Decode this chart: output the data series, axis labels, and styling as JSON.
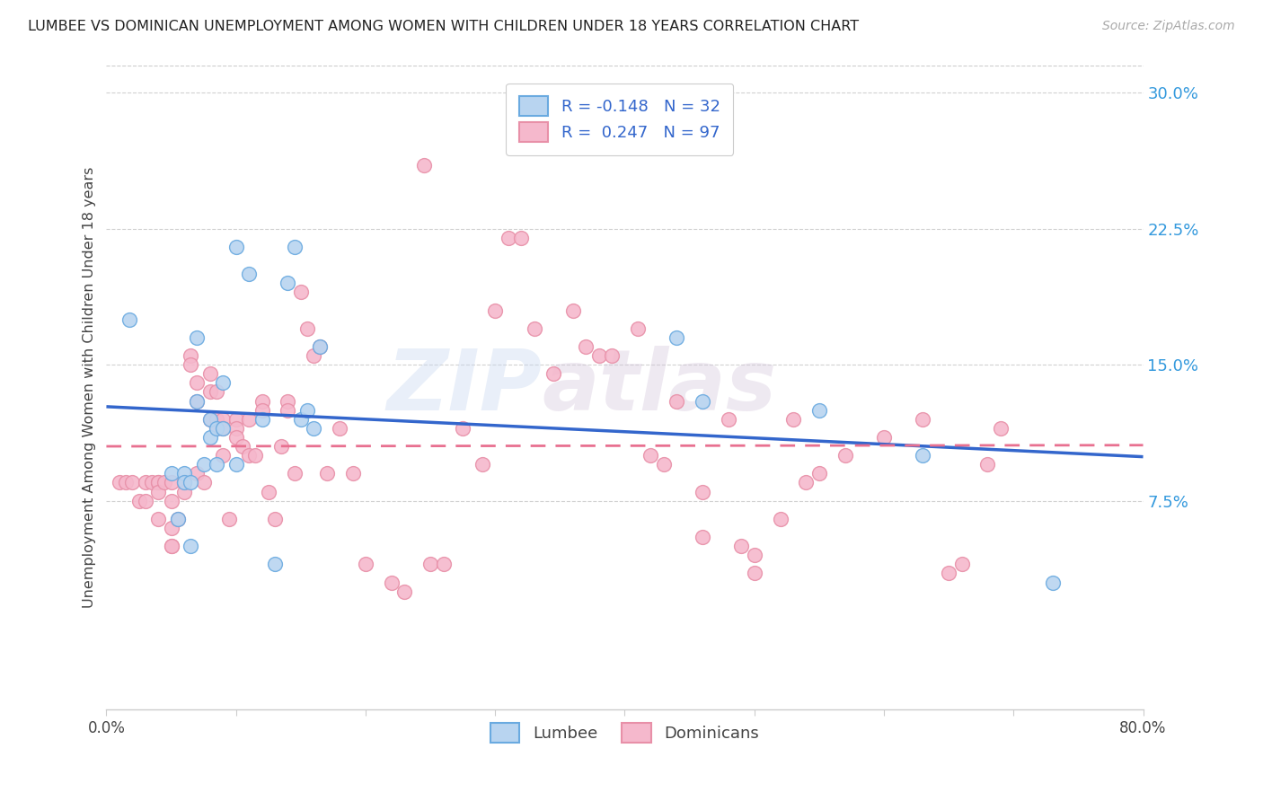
{
  "title": "LUMBEE VS DOMINICAN UNEMPLOYMENT AMONG WOMEN WITH CHILDREN UNDER 18 YEARS CORRELATION CHART",
  "source": "Source: ZipAtlas.com",
  "ylabel": "Unemployment Among Women with Children Under 18 years",
  "xlim": [
    0.0,
    0.8
  ],
  "ylim": [
    -0.04,
    0.315
  ],
  "yticks": [
    0.075,
    0.15,
    0.225,
    0.3
  ],
  "ytick_labels": [
    "7.5%",
    "15.0%",
    "22.5%",
    "30.0%"
  ],
  "xticks": [
    0.0,
    0.1,
    0.2,
    0.3,
    0.4,
    0.5,
    0.6,
    0.7,
    0.8
  ],
  "xtick_labels": [
    "0.0%",
    "",
    "",
    "",
    "",
    "",
    "",
    "",
    "80.0%"
  ],
  "lumbee_fill_color": "#b8d4f0",
  "lumbee_edge_color": "#6aaae0",
  "dominican_fill_color": "#f5b8cc",
  "dominican_edge_color": "#e890a8",
  "lumbee_line_color": "#3366cc",
  "dominican_line_color": "#e87090",
  "lumbee_R": -0.148,
  "lumbee_N": 32,
  "dominican_R": 0.247,
  "dominican_N": 97,
  "watermark_zip": "ZIP",
  "watermark_atlas": "atlas",
  "background_color": "#ffffff",
  "lumbee_x": [
    0.018,
    0.05,
    0.055,
    0.06,
    0.06,
    0.065,
    0.065,
    0.07,
    0.07,
    0.075,
    0.08,
    0.08,
    0.085,
    0.085,
    0.09,
    0.09,
    0.1,
    0.1,
    0.11,
    0.12,
    0.13,
    0.14,
    0.145,
    0.15,
    0.155,
    0.16,
    0.165,
    0.44,
    0.46,
    0.55,
    0.63,
    0.73
  ],
  "lumbee_y": [
    0.175,
    0.09,
    0.065,
    0.09,
    0.085,
    0.085,
    0.05,
    0.165,
    0.13,
    0.095,
    0.12,
    0.11,
    0.115,
    0.095,
    0.115,
    0.14,
    0.215,
    0.095,
    0.2,
    0.12,
    0.04,
    0.195,
    0.215,
    0.12,
    0.125,
    0.115,
    0.16,
    0.165,
    0.13,
    0.125,
    0.1,
    0.03
  ],
  "dominican_x": [
    0.01,
    0.015,
    0.02,
    0.025,
    0.03,
    0.03,
    0.035,
    0.04,
    0.04,
    0.04,
    0.04,
    0.045,
    0.05,
    0.05,
    0.05,
    0.05,
    0.05,
    0.055,
    0.06,
    0.06,
    0.06,
    0.065,
    0.065,
    0.07,
    0.07,
    0.07,
    0.075,
    0.08,
    0.08,
    0.08,
    0.085,
    0.085,
    0.085,
    0.09,
    0.09,
    0.09,
    0.095,
    0.1,
    0.1,
    0.1,
    0.105,
    0.11,
    0.11,
    0.115,
    0.12,
    0.12,
    0.125,
    0.13,
    0.135,
    0.14,
    0.14,
    0.145,
    0.15,
    0.155,
    0.16,
    0.165,
    0.17,
    0.18,
    0.19,
    0.2,
    0.22,
    0.23,
    0.245,
    0.25,
    0.26,
    0.275,
    0.29,
    0.3,
    0.31,
    0.32,
    0.33,
    0.345,
    0.36,
    0.37,
    0.38,
    0.39,
    0.41,
    0.42,
    0.43,
    0.44,
    0.46,
    0.46,
    0.48,
    0.49,
    0.5,
    0.5,
    0.52,
    0.53,
    0.54,
    0.55,
    0.57,
    0.6,
    0.63,
    0.65,
    0.66,
    0.68,
    0.69
  ],
  "dominican_y": [
    0.085,
    0.085,
    0.085,
    0.075,
    0.085,
    0.075,
    0.085,
    0.085,
    0.085,
    0.08,
    0.065,
    0.085,
    0.085,
    0.075,
    0.06,
    0.05,
    0.05,
    0.065,
    0.085,
    0.085,
    0.08,
    0.155,
    0.15,
    0.14,
    0.13,
    0.09,
    0.085,
    0.145,
    0.135,
    0.12,
    0.135,
    0.12,
    0.115,
    0.12,
    0.115,
    0.1,
    0.065,
    0.12,
    0.115,
    0.11,
    0.105,
    0.12,
    0.1,
    0.1,
    0.13,
    0.125,
    0.08,
    0.065,
    0.105,
    0.13,
    0.125,
    0.09,
    0.19,
    0.17,
    0.155,
    0.16,
    0.09,
    0.115,
    0.09,
    0.04,
    0.03,
    0.025,
    0.26,
    0.04,
    0.04,
    0.115,
    0.095,
    0.18,
    0.22,
    0.22,
    0.17,
    0.145,
    0.18,
    0.16,
    0.155,
    0.155,
    0.17,
    0.1,
    0.095,
    0.13,
    0.055,
    0.08,
    0.12,
    0.05,
    0.045,
    0.035,
    0.065,
    0.12,
    0.085,
    0.09,
    0.1,
    0.11,
    0.12,
    0.035,
    0.04,
    0.095,
    0.115
  ]
}
